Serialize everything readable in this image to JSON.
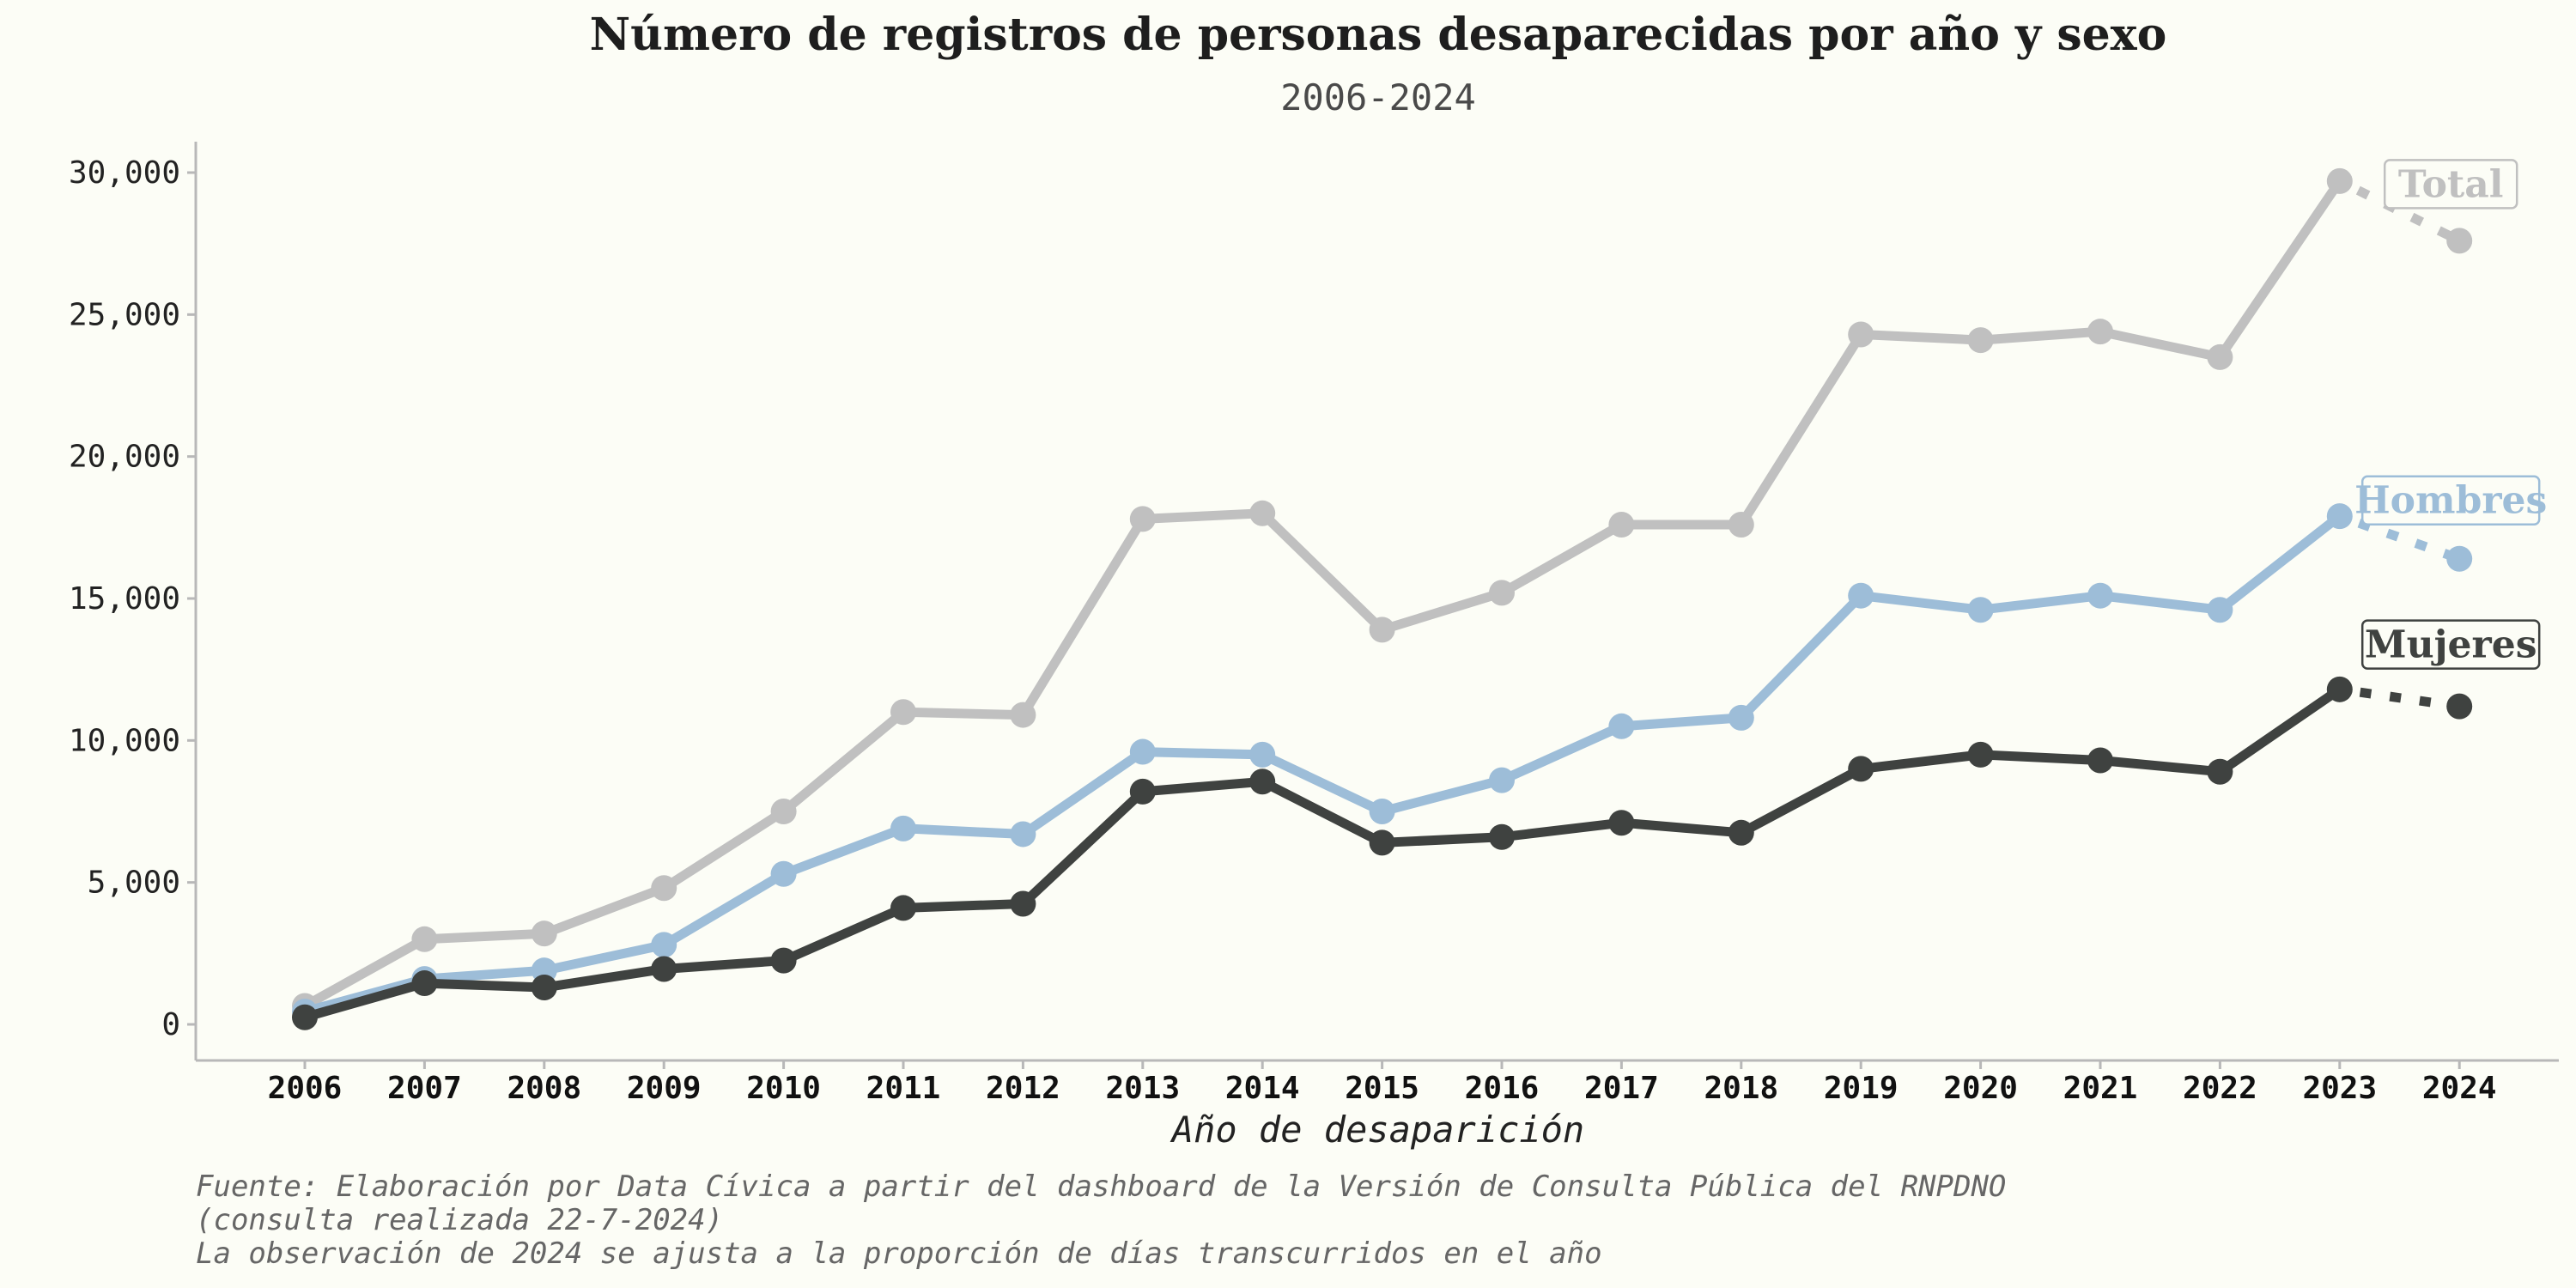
{
  "chart_data": {
    "type": "line",
    "title": "Número de registros de personas desaparecidas por año y sexo",
    "subtitle": "2006-2024",
    "xlabel": "Año de desaparición",
    "ylabel": "",
    "x": [
      2006,
      2007,
      2008,
      2009,
      2010,
      2011,
      2012,
      2013,
      2014,
      2015,
      2016,
      2017,
      2018,
      2019,
      2020,
      2021,
      2022,
      2023,
      2024
    ],
    "ylim": [
      0,
      30000
    ],
    "yticks": [
      0,
      5000,
      10000,
      15000,
      20000,
      25000,
      30000
    ],
    "ytick_labels": [
      "0",
      "5,000",
      "10,000",
      "15,000",
      "20,000",
      "25,000",
      "30,000"
    ],
    "grid": false,
    "series": [
      {
        "name": "Total",
        "color": "#c0c0c0",
        "values": [
          650,
          3000,
          3200,
          4800,
          7500,
          11000,
          10900,
          17800,
          18000,
          13900,
          15200,
          17600,
          17600,
          24300,
          24100,
          24400,
          23500,
          29700,
          27600
        ],
        "last_point_projected": true
      },
      {
        "name": "Hombres",
        "color": "#9dbdd8",
        "values": [
          450,
          1600,
          1900,
          2800,
          5300,
          6900,
          6700,
          9600,
          9500,
          7500,
          8600,
          10500,
          10800,
          15100,
          14600,
          15100,
          14600,
          17900,
          16400
        ],
        "last_point_projected": true
      },
      {
        "name": "Mujeres",
        "color": "#3f4240",
        "values": [
          250,
          1450,
          1300,
          1950,
          2250,
          4100,
          4250,
          8200,
          8550,
          6400,
          6600,
          7100,
          6750,
          9000,
          9500,
          9300,
          8900,
          11800,
          11200
        ],
        "last_point_projected": true
      }
    ],
    "caption_lines": [
      "Fuente: Elaboración por Data Cívica a partir del dashboard de la Versión de Consulta Pública del RNPDNO",
      "(consulta realizada 22-7-2024)",
      "La observación de 2024 se ajusta a la proporción de días transcurridos en el año"
    ],
    "background": "#fcfdf6"
  }
}
